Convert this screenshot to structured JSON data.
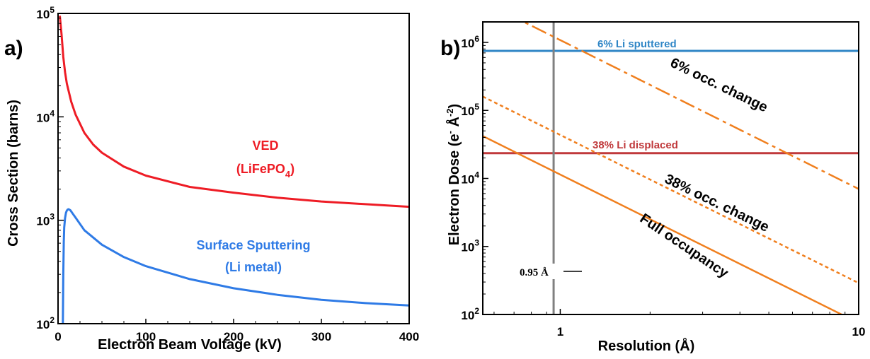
{
  "chart_data": [
    {
      "type": "line",
      "panel_label": "a)",
      "xlabel": "Electron Beam Voltage (kV)",
      "ylabel": "Cross Section (barns)",
      "xlim": [
        0,
        400
      ],
      "ylim": [
        100,
        100000
      ],
      "yscale": "log",
      "x_ticks": [
        "0",
        "100",
        "200",
        "300",
        "400"
      ],
      "y_ticks": [
        {
          "base": "10",
          "exp": "2"
        },
        {
          "base": "10",
          "exp": "3"
        },
        {
          "base": "10",
          "exp": "4"
        },
        {
          "base": "10",
          "exp": "5"
        }
      ],
      "grid": false,
      "series": [
        {
          "label_line1": "VED",
          "label_line2_prefix": "(LiFePO",
          "label_line2_sub": "4",
          "label_line2_suffix": ")",
          "color": "#ee1c25",
          "points": [
            [
              2,
              95000
            ],
            [
              4,
              62000
            ],
            [
              6,
              38000
            ],
            [
              8,
              27000
            ],
            [
              10,
              21000
            ],
            [
              15,
              14000
            ],
            [
              20,
              10500
            ],
            [
              30,
              7000
            ],
            [
              40,
              5400
            ],
            [
              50,
              4500
            ],
            [
              75,
              3300
            ],
            [
              100,
              2700
            ],
            [
              150,
              2100
            ],
            [
              200,
              1850
            ],
            [
              250,
              1650
            ],
            [
              300,
              1520
            ],
            [
              350,
              1430
            ],
            [
              400,
              1350
            ]
          ]
        },
        {
          "label_line1": "Surface Sputtering",
          "label_line2": "(Li metal)",
          "color": "#2f7be6",
          "points": [
            [
              5.5,
              100
            ],
            [
              6,
              300
            ],
            [
              6.5,
              620
            ],
            [
              7,
              850
            ],
            [
              8,
              1050
            ],
            [
              9,
              1180
            ],
            [
              10,
              1240
            ],
            [
              11,
              1270
            ],
            [
              12,
              1280
            ],
            [
              14,
              1250
            ],
            [
              17,
              1150
            ],
            [
              20,
              1060
            ],
            [
              30,
              800
            ],
            [
              50,
              580
            ],
            [
              75,
              440
            ],
            [
              100,
              360
            ],
            [
              150,
              270
            ],
            [
              200,
              220
            ],
            [
              250,
              190
            ],
            [
              300,
              170
            ],
            [
              350,
              158
            ],
            [
              400,
              150
            ]
          ]
        }
      ]
    },
    {
      "type": "line",
      "panel_label": "b)",
      "xlabel": "Resolution (Å)",
      "ylabel_main": "Electron Dose (e",
      "ylabel_sup1": "-",
      "ylabel_mid": " Å",
      "ylabel_sup2": "-2",
      "ylabel_end": ")",
      "xscale": "log",
      "yscale": "log",
      "xlim": [
        0.55,
        10
      ],
      "ylim": [
        100,
        2000000
      ],
      "x_ticks": [
        "1",
        "10"
      ],
      "y_ticks": [
        {
          "base": "10",
          "exp": "2"
        },
        {
          "base": "10",
          "exp": "3"
        },
        {
          "base": "10",
          "exp": "4"
        },
        {
          "base": "10",
          "exp": "5"
        },
        {
          "base": "10",
          "exp": "6"
        }
      ],
      "grid": false,
      "reference_lines": [
        {
          "label": "6% Li sputtered",
          "y": 750000,
          "color": "#2f86c6"
        },
        {
          "label": "38% Li displaced",
          "y": 23500,
          "color": "#c0393b"
        }
      ],
      "vertical_line": {
        "label": "0.95 Å",
        "x": 0.95,
        "color": "#808080"
      },
      "series": [
        {
          "label": "6% occ. change",
          "style": "long-dash-dot",
          "color": "#f07f1e",
          "points": [
            [
              0.55,
              4000000
            ],
            [
              10,
              7000
            ]
          ]
        },
        {
          "label": "38% occ. change",
          "style": "short-dash",
          "color": "#f07f1e",
          "points": [
            [
              0.55,
              160000
            ],
            [
              10,
              290
            ]
          ]
        },
        {
          "label": "Full occupancy",
          "style": "solid",
          "color": "#f07f1e",
          "points": [
            [
              0.55,
              42000
            ],
            [
              10,
              75
            ]
          ]
        }
      ]
    }
  ]
}
